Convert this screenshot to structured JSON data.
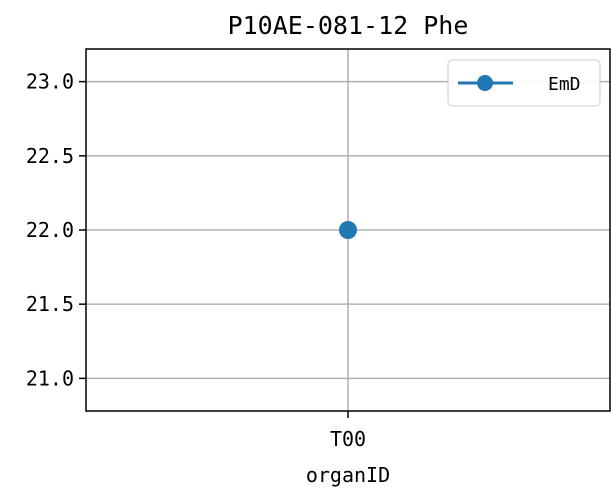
{
  "chart_data": {
    "type": "line",
    "title": "P10AE-081-12 Phe",
    "xlabel": "organID",
    "ylabel": "",
    "categories": [
      "T00"
    ],
    "series": [
      {
        "name": "EmD",
        "values": [
          22.0
        ],
        "color": "#1f77b4",
        "marker": "circle"
      }
    ],
    "ylim": [
      20.78,
      23.22
    ],
    "yticks": [
      21.0,
      21.5,
      22.0,
      22.5,
      23.0
    ],
    "ytick_labels": [
      "21.0",
      "21.5",
      "22.0",
      "22.5",
      "23.0"
    ],
    "grid": true,
    "legend_position": "top-right"
  }
}
